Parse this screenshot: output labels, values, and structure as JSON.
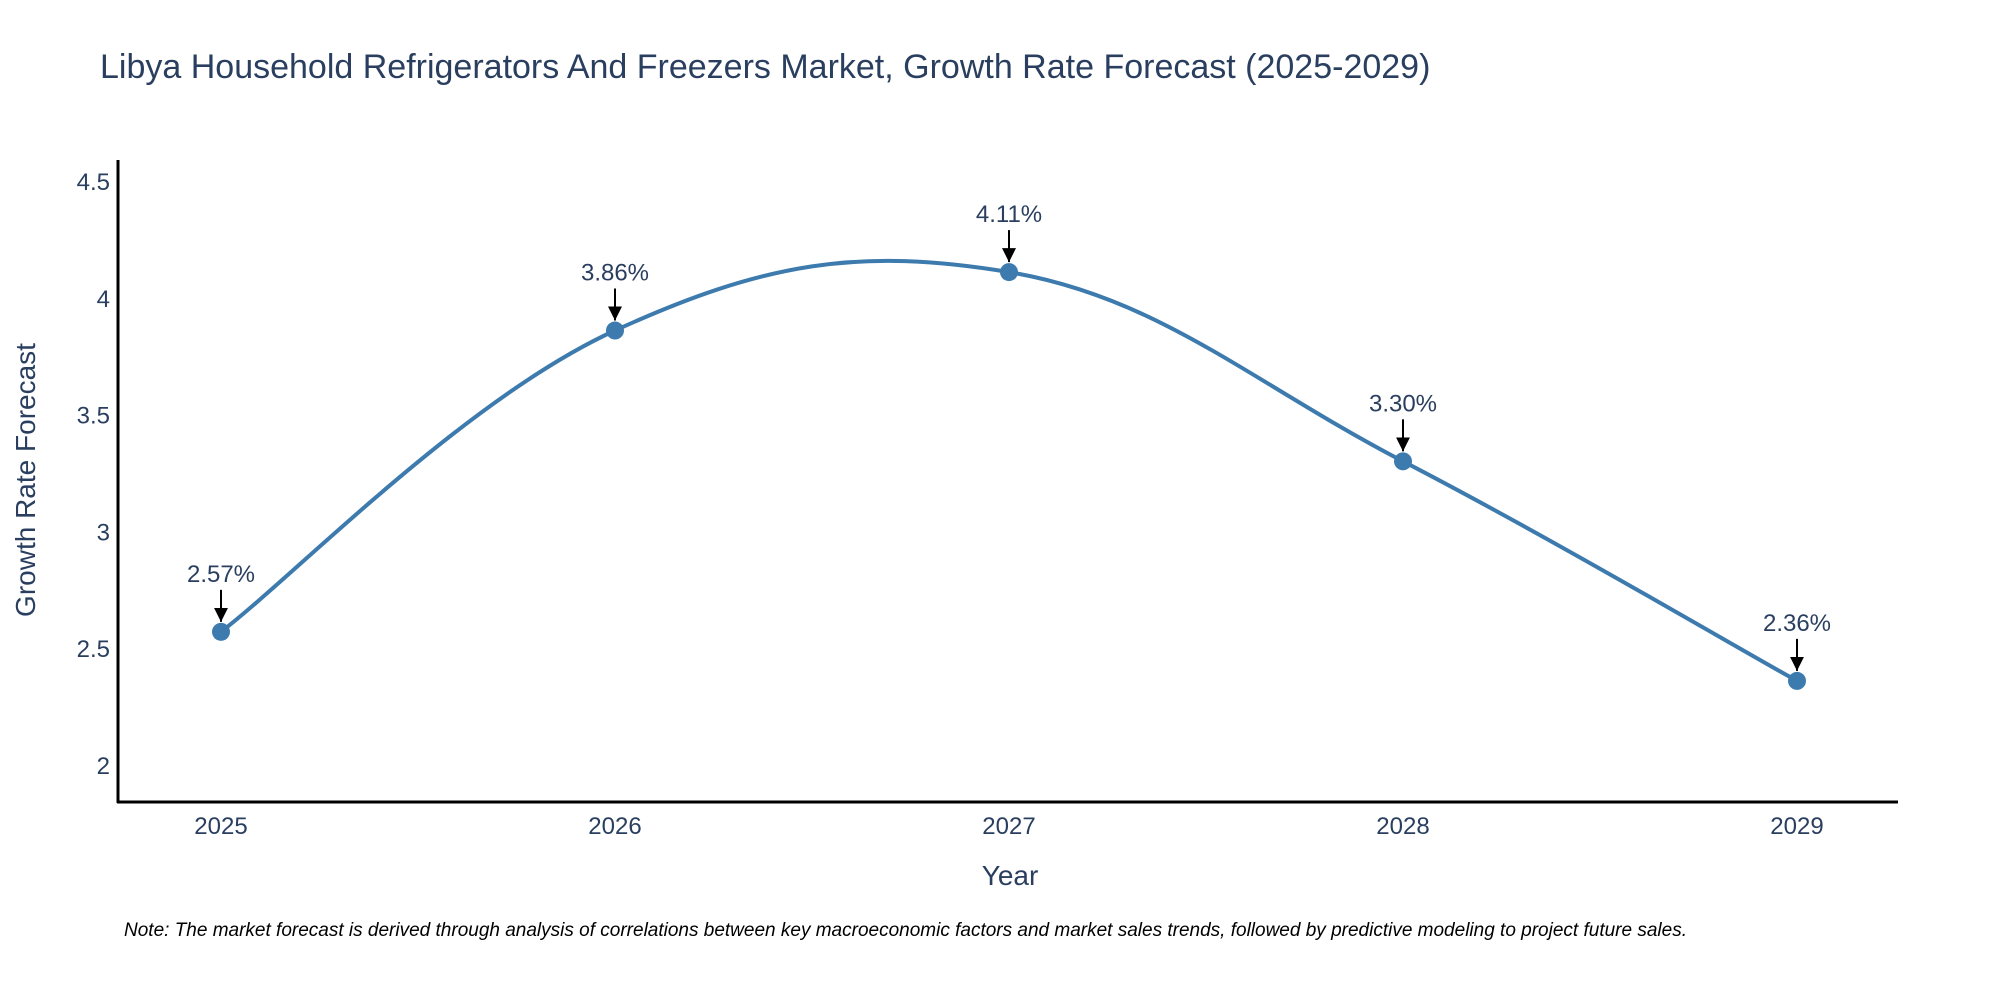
{
  "chart_data": {
    "type": "line",
    "title": "Libya Household Refrigerators And Freezers Market, Growth Rate Forecast (2025-2029)",
    "xlabel": "Year",
    "ylabel": "Growth Rate Forecast",
    "categories": [
      "2025",
      "2026",
      "2027",
      "2028",
      "2029"
    ],
    "series": [
      {
        "name": "Growth Rate Forecast",
        "values": [
          2.57,
          3.86,
          4.11,
          3.3,
          2.36
        ],
        "labels": [
          "2.57%",
          "3.86%",
          "4.11%",
          "3.30%",
          "2.36%"
        ]
      }
    ],
    "ylim": [
      1.85,
      4.6
    ],
    "yticks": [
      2,
      2.5,
      3,
      3.5,
      4,
      4.5
    ],
    "ytick_labels": [
      "2",
      "2.5",
      "3",
      "3.5",
      "4",
      "4.5"
    ],
    "grid": false,
    "line_shape": "spline",
    "line_color": "#3d7aad",
    "marker_color": "#3d7aad"
  },
  "note": "Note: The market forecast is derived through analysis of correlations between key macroeconomic factors and market sales trends, followed by predictive modeling to project future sales."
}
